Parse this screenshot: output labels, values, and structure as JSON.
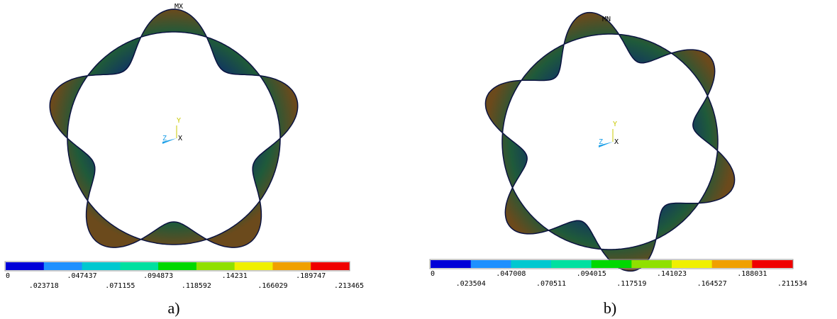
{
  "panels": [
    {
      "caption": "a)",
      "extreme_label": "MX",
      "triad": {
        "x": "X",
        "y": "Y",
        "z": "Z"
      },
      "legend": {
        "labels": [
          "0",
          ".023718",
          ".047437",
          ".071155",
          ".094873",
          ".118592",
          ".14231",
          ".166029",
          ".189747",
          ".213465"
        ]
      }
    },
    {
      "caption": "b)",
      "extreme_label": "MN",
      "triad": {
        "x": "X",
        "y": "Y",
        "z": "Z"
      },
      "legend": {
        "labels": [
          "0",
          ".023504",
          ".047008",
          ".070511",
          ".094015",
          ".117519",
          ".141023",
          ".164527",
          ".188031",
          ".211534"
        ]
      }
    }
  ]
}
